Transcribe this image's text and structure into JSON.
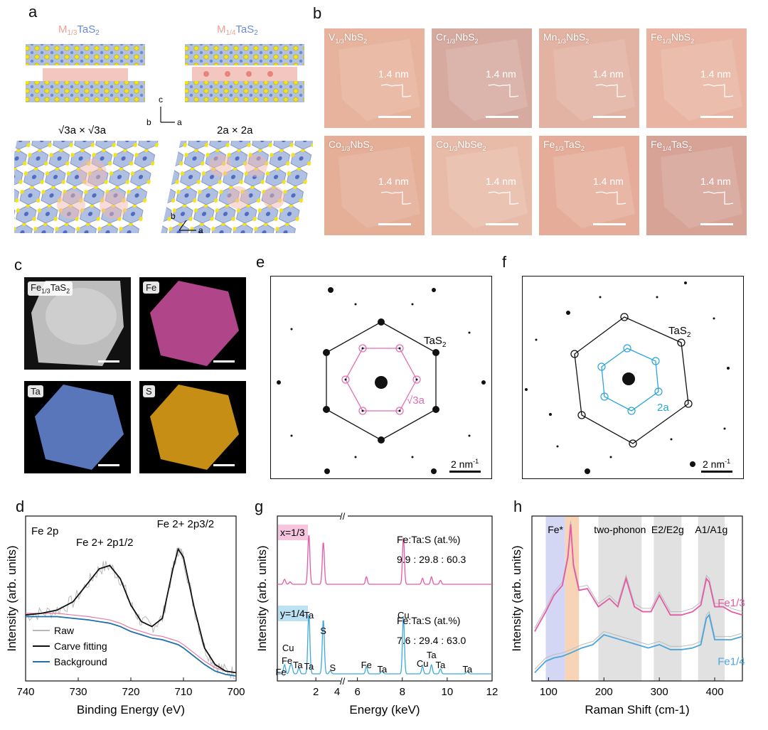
{
  "panels": {
    "a": "a",
    "b": "b",
    "c": "c",
    "d": "d",
    "e": "e",
    "f": "f",
    "g": "g",
    "h": "h"
  },
  "panel_a": {
    "struct1_M": "M",
    "struct1_frac": "1/3",
    "struct1_TaS": "TaS",
    "struct1_sub": "2",
    "struct2_M": "M",
    "struct2_frac": "1/4",
    "struct2_TaS": "TaS",
    "struct2_sub": "2",
    "axis_c": "c",
    "axis_b_top": "b",
    "axis_a_top": "a",
    "super1": "√3a × √3a",
    "super2": "2a × 2a",
    "axis_b_bot": "b",
    "axis_a_bot": "a"
  },
  "panel_b": {
    "tiles": [
      {
        "base": "V",
        "frac": "1/3",
        "rest": "NbS",
        "sub": "2",
        "thickness": "1.4 nm",
        "color": "#e7b39c"
      },
      {
        "base": "Cr",
        "frac": "1/3",
        "rest": "NbS",
        "sub": "2",
        "thickness": "1.4 nm",
        "color": "#d7aaa0"
      },
      {
        "base": "Mn",
        "frac": "1/3",
        "rest": "NbS",
        "sub": "2",
        "thickness": "1.4 nm",
        "color": "#e2b2a2"
      },
      {
        "base": "Fe",
        "frac": "1/3",
        "rest": "NbS",
        "sub": "2",
        "thickness": "1.4 nm",
        "color": "#e9b4a1"
      },
      {
        "base": "Co",
        "frac": "1/3",
        "rest": "NbS",
        "sub": "2",
        "thickness": "1.4 nm",
        "color": "#e4ae97"
      },
      {
        "base": "Co",
        "frac": "1/3",
        "rest": "NbSe",
        "sub": "2",
        "thickness": "1.4 nm",
        "color": "#e8bba8"
      },
      {
        "base": "Fe",
        "frac": "1/3",
        "rest": "TaS",
        "sub": "2",
        "thickness": "1.4 nm",
        "color": "#e5ad99"
      },
      {
        "base": "Fe",
        "frac": "1/4",
        "rest": "TaS",
        "sub": "2",
        "thickness": "1.4 nm",
        "color": "#d7a397"
      }
    ]
  },
  "panel_c": {
    "maps": [
      {
        "label": "Fe1/3TaS2",
        "color": "#c0c0c0"
      },
      {
        "label": "Fe",
        "color": "#c8509a"
      },
      {
        "label": "Ta",
        "color": "#5878c0"
      },
      {
        "label": "S",
        "color": "#d89a18"
      }
    ],
    "label_main_base": "Fe",
    "label_main_frac": "1/3",
    "label_main_rest": "TaS",
    "label_main_sub": "2"
  },
  "panel_e": {
    "lattice_label": "TaS",
    "lattice_sub": "2",
    "super_label": "√3a",
    "scalebar": "2 nm",
    "scalebar_sup": "-1",
    "accent": "#e26fb4"
  },
  "panel_f": {
    "lattice_label": "TaS",
    "lattice_sub": "2",
    "super_label": "2a",
    "scalebar": "2 nm",
    "scalebar_sup": "-1",
    "accent": "#2aa6d8"
  },
  "chart_data": [
    {
      "id": "d",
      "type": "line",
      "title": "Fe 2p",
      "xlabel": "Binding Energy (eV)",
      "ylabel": "Intensity (arb. units)",
      "xlim": [
        740,
        700
      ],
      "xticks": [
        "740",
        "730",
        "720",
        "710",
        "700"
      ],
      "annotations": [
        {
          "text": "Fe 2+ 2p1/2",
          "x": 725
        },
        {
          "text": "Fe 2+ 2p3/2",
          "x": 711
        }
      ],
      "series": [
        {
          "name": "Raw",
          "color": "#b9b9b9"
        },
        {
          "name": "Carve fitting",
          "color": "#111111"
        },
        {
          "name": "Background",
          "color": "#1f6fa8"
        }
      ],
      "x": [
        740,
        737,
        734,
        731,
        728,
        726,
        724,
        722,
        720,
        718,
        716,
        714,
        712,
        711,
        710,
        708,
        706,
        704,
        702,
        700
      ],
      "fit": [
        0.4,
        0.41,
        0.43,
        0.48,
        0.6,
        0.68,
        0.7,
        0.62,
        0.46,
        0.36,
        0.33,
        0.38,
        0.68,
        0.8,
        0.75,
        0.45,
        0.2,
        0.1,
        0.06,
        0.05
      ],
      "background": [
        0.39,
        0.39,
        0.39,
        0.38,
        0.37,
        0.36,
        0.35,
        0.33,
        0.3,
        0.28,
        0.26,
        0.25,
        0.23,
        0.22,
        0.2,
        0.15,
        0.1,
        0.06,
        0.04,
        0.03
      ]
    },
    {
      "id": "g",
      "type": "line",
      "xlabel": "Energy (keV)",
      "ylabel": "Intensity (arb. units)",
      "xticks": [
        "2",
        "4",
        "6",
        "8",
        "10",
        "12"
      ],
      "series": [
        {
          "name": "x=1/3",
          "color": "#e55aa5",
          "ratio_title": "Fe:Ta:S (at.%)",
          "ratio": "9.9 : 29.8 : 60.3"
        },
        {
          "name": "y=1/4",
          "color": "#3ea9de",
          "ratio_title": "Fe:Ta:S (at.%)",
          "ratio": "7.6 : 29.4 : 63.0"
        }
      ],
      "peaks": [
        {
          "label": "Fe",
          "energy": 0.7
        },
        {
          "label": "Cu",
          "energy": 0.93
        },
        {
          "label": "Fe",
          "energy": 1.0
        },
        {
          "label": "Ta",
          "energy": 1.3
        },
        {
          "label": "Ta",
          "energy": 1.71
        },
        {
          "label": "Ta",
          "energy": 1.71
        },
        {
          "label": "S",
          "energy": 2.31
        },
        {
          "label": "S",
          "energy": 2.6
        },
        {
          "label": "Fe",
          "energy": 6.4
        },
        {
          "label": "Ta",
          "energy": 7.1
        },
        {
          "label": "Cu",
          "energy": 8.05
        },
        {
          "label": "Cu",
          "energy": 8.9
        },
        {
          "label": "Ta",
          "energy": 9.3
        },
        {
          "label": "Ta",
          "energy": 9.7
        },
        {
          "label": "Ta",
          "energy": 10.9
        }
      ]
    },
    {
      "id": "h",
      "type": "line",
      "xlabel": "Raman Shift (cm-1)",
      "ylabel": "Intensity (arb. units)",
      "xlim": [
        70,
        450
      ],
      "xticks": [
        "100",
        "200",
        "300",
        "400"
      ],
      "bands": [
        {
          "label": "Fe*",
          "from": 95,
          "to": 130,
          "color": "#c9cdf0"
        },
        {
          "label": "",
          "from": 130,
          "to": 155,
          "color": "#f6c9a4"
        },
        {
          "label": "two-phonon",
          "from": 190,
          "to": 268,
          "color": "#d9d9d9"
        },
        {
          "label": "E2/E2g",
          "from": 290,
          "to": 340,
          "color": "#d9d9d9"
        },
        {
          "label": "A1/A1g",
          "from": 370,
          "to": 418,
          "color": "#d9d9d9"
        }
      ],
      "series": [
        {
          "name": "Fe1/3",
          "color": "#e55aa5",
          "x": [
            75,
            95,
            110,
            125,
            135,
            140,
            145,
            155,
            170,
            190,
            210,
            225,
            240,
            255,
            270,
            285,
            300,
            320,
            340,
            360,
            375,
            385,
            390,
            400,
            415,
            430,
            450
          ],
          "y": [
            0.3,
            0.42,
            0.52,
            0.58,
            0.75,
            0.95,
            0.7,
            0.55,
            0.56,
            0.45,
            0.5,
            0.45,
            0.62,
            0.45,
            0.42,
            0.42,
            0.52,
            0.4,
            0.4,
            0.42,
            0.46,
            0.62,
            0.6,
            0.45,
            0.45,
            0.42,
            0.4
          ]
        },
        {
          "name": "Fe1/4",
          "color": "#4aa6dc",
          "x": [
            75,
            95,
            110,
            125,
            140,
            160,
            180,
            200,
            220,
            240,
            260,
            280,
            300,
            320,
            340,
            360,
            375,
            385,
            390,
            400,
            415,
            430,
            450
          ],
          "y": [
            0.05,
            0.12,
            0.14,
            0.15,
            0.17,
            0.2,
            0.22,
            0.28,
            0.26,
            0.24,
            0.22,
            0.2,
            0.22,
            0.19,
            0.19,
            0.2,
            0.22,
            0.38,
            0.4,
            0.25,
            0.25,
            0.25,
            0.27
          ]
        }
      ]
    }
  ]
}
